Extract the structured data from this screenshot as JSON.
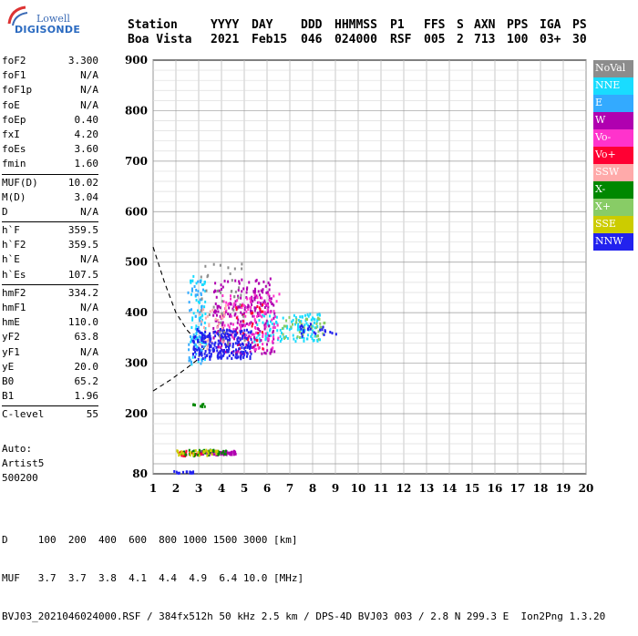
{
  "logo": {
    "line1": "Lowell",
    "line2": "DIGISONDE"
  },
  "header": {
    "row1": [
      "Station",
      "YYYY",
      "DAY",
      "DDD",
      "HHMMSS",
      "P1",
      "FFS",
      "S",
      "AXN",
      "PPS",
      "IGA",
      "PS"
    ],
    "row2": [
      "Boa Vista",
      "2021",
      "Feb15",
      "046",
      "024000",
      "RSF",
      "005",
      "2",
      "713",
      "100",
      "03+",
      "30"
    ]
  },
  "params": {
    "group1": [
      {
        "k": "foF2",
        "v": "3.300"
      },
      {
        "k": "foF1",
        "v": "N/A"
      },
      {
        "k": "foF1p",
        "v": "N/A"
      },
      {
        "k": "foE",
        "v": "N/A"
      },
      {
        "k": "foEp",
        "v": "0.40"
      },
      {
        "k": "fxI",
        "v": "4.20"
      },
      {
        "k": "foEs",
        "v": "3.60"
      },
      {
        "k": "fmin",
        "v": "1.60"
      }
    ],
    "group2": [
      {
        "k": "MUF(D)",
        "v": "10.02"
      },
      {
        "k": "M(D)",
        "v": "3.04"
      },
      {
        "k": "D",
        "v": "N/A"
      }
    ],
    "group3": [
      {
        "k": "h`F",
        "v": "359.5"
      },
      {
        "k": "h`F2",
        "v": "359.5"
      },
      {
        "k": "h`E",
        "v": "N/A"
      },
      {
        "k": "h`Es",
        "v": "107.5"
      }
    ],
    "group4": [
      {
        "k": "hmF2",
        "v": "334.2"
      },
      {
        "k": "hmF1",
        "v": "N/A"
      },
      {
        "k": "hmE",
        "v": "110.0"
      },
      {
        "k": "yF2",
        "v": "63.8"
      },
      {
        "k": "yF1",
        "v": "N/A"
      },
      {
        "k": "yE",
        "v": "20.0"
      },
      {
        "k": "B0",
        "v": "65.2"
      },
      {
        "k": "B1",
        "v": "1.96"
      }
    ],
    "group5": [
      {
        "k": "C-level",
        "v": "55"
      }
    ]
  },
  "auto": {
    "line1": "Auto:",
    "line2": "Artist5",
    "line3": "500200"
  },
  "legend": [
    {
      "name": "NoVal",
      "color": "#8c8c8c"
    },
    {
      "name": "NNE",
      "color": "#19dcff"
    },
    {
      "name": "E",
      "color": "#33aaff"
    },
    {
      "name": "W",
      "color": "#b000b0"
    },
    {
      "name": "Vo-",
      "color": "#ff33cc"
    },
    {
      "name": "Vo+",
      "color": "#ff0033"
    },
    {
      "name": "SSW",
      "color": "#ffaaaa"
    },
    {
      "name": "X-",
      "color": "#008800"
    },
    {
      "name": "X+",
      "color": "#88cc66"
    },
    {
      "name": "SSE",
      "color": "#cccc00"
    },
    {
      "name": "NNW",
      "color": "#2222ee"
    }
  ],
  "bottom": {
    "line1": "D     100  200  400  600  800 1000 1500 3000 [km]",
    "line2": "MUF   3.7  3.7  3.8  4.1  4.4  4.9  6.4 10.0 [MHz]",
    "line3": "BVJ03_2021046024000.RSF / 384fx512h 50 kHz 2.5 km / DPS-4D BVJ03 003 / 2.8 N 299.3 E  Ion2Png 1.3.20"
  },
  "chart_data": {
    "type": "scatter",
    "title": "",
    "xlabel": "",
    "ylabel": "",
    "xlim": [
      1,
      20
    ],
    "ylim": [
      80,
      900
    ],
    "x_ticks": [
      1,
      2,
      3,
      4,
      5,
      6,
      7,
      8,
      9,
      10,
      11,
      12,
      13,
      14,
      15,
      16,
      17,
      18,
      19,
      20
    ],
    "y_ticks": [
      80,
      200,
      300,
      400,
      500,
      600,
      700,
      800,
      900
    ],
    "grid": true,
    "legend_position": "right",
    "profile_curve": {
      "style": "dashed",
      "x": [
        1.0,
        1.5,
        2.0,
        2.5,
        2.9,
        3.3
      ],
      "y": [
        530,
        460,
        400,
        365,
        345,
        335
      ]
    },
    "profile_curve_lower": {
      "style": "dashed",
      "x": [
        1.0,
        1.8,
        2.4,
        2.9,
        3.3
      ],
      "y": [
        245,
        268,
        288,
        305,
        335
      ]
    },
    "echo_clusters": [
      {
        "series": "NNE",
        "xmin": 2.6,
        "xmax": 3.3,
        "ymin": 300,
        "ymax": 480,
        "n": 70
      },
      {
        "series": "NNE",
        "xmin": 5.4,
        "xmax": 8.3,
        "ymin": 345,
        "ymax": 400,
        "n": 120
      },
      {
        "series": "E",
        "xmin": 2.5,
        "xmax": 3.2,
        "ymin": 300,
        "ymax": 470,
        "n": 50
      },
      {
        "series": "W",
        "xmin": 3.6,
        "xmax": 6.3,
        "ymin": 320,
        "ymax": 470,
        "n": 260
      },
      {
        "series": "W",
        "xmin": 3.0,
        "xmax": 4.6,
        "ymin": 120,
        "ymax": 128,
        "n": 70
      },
      {
        "series": "Vo-",
        "xmin": 4.0,
        "xmax": 6.5,
        "ymin": 330,
        "ymax": 440,
        "n": 100
      },
      {
        "series": "Vo+",
        "xmin": 4.5,
        "xmax": 5.8,
        "ymin": 320,
        "ymax": 420,
        "n": 30
      },
      {
        "series": "Vo+",
        "xmin": 2.1,
        "xmax": 3.3,
        "ymin": 118,
        "ymax": 128,
        "n": 25
      },
      {
        "series": "SSW",
        "xmin": 3.0,
        "xmax": 4.2,
        "ymin": 330,
        "ymax": 420,
        "n": 40
      },
      {
        "series": "X-",
        "xmin": 2.2,
        "xmax": 4.2,
        "ymin": 118,
        "ymax": 130,
        "n": 40
      },
      {
        "series": "X-",
        "xmin": 2.6,
        "xmax": 3.4,
        "ymin": 215,
        "ymax": 222,
        "n": 10
      },
      {
        "series": "X+",
        "xmin": 6.5,
        "xmax": 8.5,
        "ymin": 350,
        "ymax": 395,
        "n": 40
      },
      {
        "series": "SSE",
        "xmin": 2.0,
        "xmax": 3.8,
        "ymin": 118,
        "ymax": 130,
        "n": 30
      },
      {
        "series": "NNW",
        "xmin": 2.7,
        "xmax": 5.3,
        "ymin": 310,
        "ymax": 370,
        "n": 230
      },
      {
        "series": "NNW",
        "xmin": 7.4,
        "xmax": 9.0,
        "ymin": 355,
        "ymax": 380,
        "n": 25
      },
      {
        "series": "NNW",
        "xmin": 1.7,
        "xmax": 2.8,
        "ymin": 83,
        "ymax": 88,
        "n": 15
      },
      {
        "series": "NoVal",
        "xmin": 3.0,
        "xmax": 5.0,
        "ymin": 330,
        "ymax": 500,
        "n": 40
      }
    ]
  }
}
